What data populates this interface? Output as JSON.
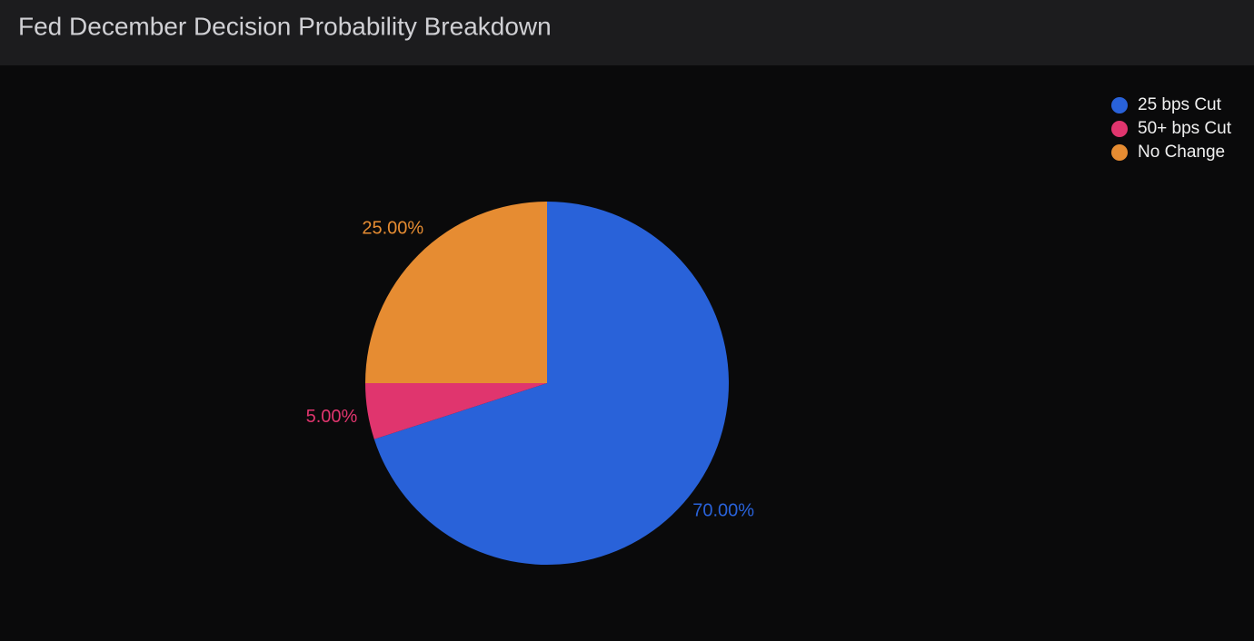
{
  "chart_data": {
    "type": "pie",
    "title": "Fed December Decision Probability Breakdown",
    "categories": [
      "25 bps Cut",
      "50+ bps Cut",
      "No Change"
    ],
    "values": [
      70,
      5,
      25
    ],
    "value_labels": [
      "70.00%",
      "5.00%",
      "25.00%"
    ],
    "colors": [
      "#2962d9",
      "#e0356e",
      "#e68c32"
    ],
    "legend": "top-right"
  }
}
